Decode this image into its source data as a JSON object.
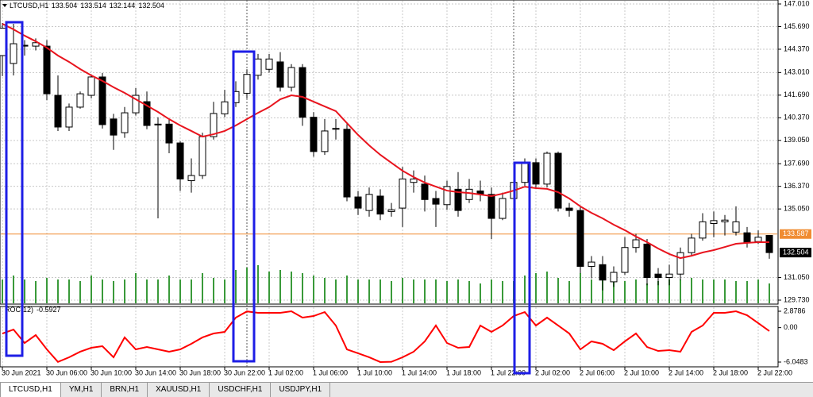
{
  "chart_data": [
    {
      "type": "candlestick",
      "title": "LTCUSD,H1",
      "categories": [
        "30 Jun 2021",
        null,
        null,
        null,
        "30 Jun 06:00",
        null,
        null,
        null,
        "30 Jun 10:00",
        null,
        null,
        null,
        "30 Jun 14:00",
        null,
        null,
        null,
        "30 Jun 18:00",
        null,
        null,
        null,
        "30 Jun 22:00",
        null,
        null,
        null,
        "1 Jul 02:00",
        null,
        null,
        null,
        "1 Jul 06:00",
        null,
        null,
        null,
        "1 Jul 10:00",
        null,
        null,
        null,
        "1 Jul 14:00",
        null,
        null,
        null,
        "1 Jul 18:00",
        null,
        null,
        null,
        "1 Jul 22:00",
        null,
        null,
        null,
        "2 Jul 02:00",
        null,
        null,
        null,
        "2 Jul 06:00",
        null,
        null,
        null,
        "2 Jul 10:00",
        null,
        null,
        null,
        "2 Jul 14:00",
        null,
        null,
        null,
        "2 Jul 18:00",
        null,
        null,
        null,
        "2 Jul 22:00",
        null
      ],
      "open": [
        144.0,
        143.54,
        144.6,
        144.55,
        144.55,
        141.68,
        139.83,
        140.99,
        141.68,
        142.75,
        140.3,
        139.5,
        140.66,
        141.31,
        140.0,
        140.0,
        138.9,
        136.7,
        137.0,
        139.27,
        140.6,
        141.25,
        141.8,
        142.85,
        143.2,
        143.63,
        142.15,
        143.3,
        140.4,
        138.4,
        139.7,
        139.7,
        135.75,
        134.96,
        135.8,
        134.9,
        135.1,
        136.6,
        136.5,
        135.66,
        135.3,
        136.2,
        135.6,
        136.1,
        135.9,
        134.5,
        135.66,
        136.6,
        137.75,
        136.5,
        138.3,
        135.1,
        134.96,
        131.7,
        131.8,
        130.8,
        131.35,
        132.8,
        133.0,
        131.25,
        131.05,
        131.25,
        132.5,
        133.35,
        134.2,
        134.3,
        133.7,
        133.66,
        133.15,
        133.504
      ],
      "high": [
        145.9,
        145.85,
        144.9,
        145.0,
        144.9,
        142.84,
        141.2,
        141.9,
        142.9,
        142.98,
        140.6,
        141.0,
        142.1,
        141.9,
        140.4,
        140.3,
        139.0,
        138.0,
        139.5,
        141.3,
        142.0,
        142.5,
        143.2,
        144.1,
        144.1,
        144.2,
        143.5,
        143.5,
        140.7,
        140.3,
        140.3,
        140.0,
        136.1,
        136.3,
        136.2,
        135.4,
        137.5,
        137.3,
        137.0,
        136.1,
        136.7,
        137.2,
        136.8,
        136.7,
        136.3,
        136.0,
        137.0,
        138.0,
        138.0,
        138.4,
        138.4,
        135.4,
        135.2,
        132.3,
        132.3,
        131.7,
        133.4,
        133.6,
        133.3,
        131.6,
        131.8,
        132.8,
        133.6,
        134.8,
        134.9,
        134.7,
        135.2,
        134.0,
        133.8,
        133.514
      ],
      "low": [
        142.8,
        142.84,
        144.0,
        144.3,
        141.4,
        139.6,
        139.6,
        140.9,
        141.5,
        139.74,
        138.5,
        139.2,
        140.5,
        139.7,
        134.5,
        138.3,
        136.1,
        136.0,
        136.8,
        139.1,
        140.4,
        141.0,
        141.5,
        142.6,
        143.0,
        141.9,
        141.9,
        139.9,
        138.1,
        138.2,
        139.1,
        135.5,
        134.7,
        134.6,
        134.4,
        134.6,
        134.0,
        136.0,
        134.9,
        134.0,
        135.0,
        134.6,
        135.4,
        135.5,
        133.3,
        134.4,
        135.4,
        136.4,
        136.3,
        136.3,
        134.9,
        134.6,
        131.3,
        131.0,
        130.3,
        130.5,
        131.2,
        132.5,
        130.6,
        130.6,
        130.6,
        130.9,
        132.3,
        133.2,
        133.4,
        133.5,
        133.5,
        132.8,
        133.0,
        132.144
      ],
      "close": [
        145.6,
        144.69,
        144.55,
        144.75,
        141.77,
        139.83,
        140.99,
        141.77,
        142.75,
        139.97,
        139.36,
        140.66,
        141.68,
        139.92,
        139.95,
        138.9,
        136.8,
        137.0,
        139.27,
        140.62,
        141.3,
        141.9,
        142.9,
        143.8,
        143.8,
        142.15,
        143.3,
        140.4,
        138.4,
        139.6,
        139.75,
        135.75,
        135.1,
        135.9,
        134.75,
        135.0,
        136.8,
        136.8,
        135.6,
        135.33,
        136.36,
        134.96,
        136.2,
        135.9,
        134.5,
        135.66,
        136.6,
        137.7,
        136.5,
        138.3,
        135.1,
        134.96,
        131.7,
        131.95,
        130.9,
        131.35,
        132.8,
        133.25,
        131.05,
        131.05,
        131.25,
        132.5,
        133.35,
        134.3,
        134.37,
        134.4,
        134.3,
        133.1,
        133.4,
        132.504
      ],
      "up_color": "#ffffff",
      "down_color": "#000000",
      "ma": {
        "color": "#e8141e",
        "values": [
          145.85,
          145.53,
          145.16,
          144.83,
          144.46,
          144.0,
          143.63,
          143.21,
          142.84,
          142.52,
          142.15,
          141.82,
          141.45,
          141.08,
          140.71,
          140.29,
          139.92,
          139.6,
          139.27,
          139.41,
          139.6,
          139.92,
          140.29,
          140.66,
          140.99,
          141.45,
          141.68,
          141.59,
          141.31,
          141.03,
          140.76,
          140.06,
          139.37,
          138.76,
          138.21,
          137.74,
          137.28,
          136.91,
          136.59,
          136.35,
          136.12,
          136.03,
          135.98,
          135.89,
          135.8,
          135.94,
          136.12,
          136.35,
          136.26,
          136.22,
          136.03,
          135.66,
          135.2,
          134.82,
          134.5,
          134.13,
          133.81,
          133.44,
          133.11,
          132.74,
          132.42,
          132.18,
          132.32,
          132.51,
          132.65,
          132.83,
          133.02,
          133.07,
          133.11,
          133.11
        ]
      },
      "volume": {
        "color": "#3a9a3a",
        "values": [
          30,
          35,
          30,
          28,
          32,
          30,
          30,
          28,
          35,
          30,
          28,
          30,
          38,
          30,
          30,
          35,
          30,
          30,
          38,
          32,
          30,
          42,
          45,
          48,
          40,
          42,
          40,
          38,
          35,
          32,
          30,
          35,
          30,
          30,
          30,
          28,
          32,
          30,
          30,
          30,
          28,
          30,
          28,
          25,
          30,
          28,
          28,
          35,
          38,
          40,
          32,
          28,
          38,
          30,
          35,
          30,
          28,
          30,
          25,
          28,
          30,
          30,
          32,
          30,
          30,
          30,
          28,
          28,
          30,
          25
        ]
      },
      "ask_line": 133.587,
      "ask_color": "#f08c32",
      "ylim": [
        129.73,
        147.01
      ],
      "yticks": [
        {
          "value": 147.01,
          "label": "147.010"
        },
        {
          "value": 145.69,
          "label": "145.690"
        },
        {
          "value": 144.37,
          "label": "144.370"
        },
        {
          "value": 143.01,
          "label": "143.010"
        },
        {
          "value": 141.69,
          "label": "141.690"
        },
        {
          "value": 140.37,
          "label": "140.370"
        },
        {
          "value": 139.05,
          "label": "139.050"
        },
        {
          "value": 137.69,
          "label": "137.690"
        },
        {
          "value": 136.37,
          "label": "136.370"
        },
        {
          "value": 135.05,
          "label": "135.050"
        },
        {
          "value": 131.05,
          "label": "131.050"
        },
        {
          "value": 129.73,
          "label": "129.730"
        }
      ],
      "grid": true
    },
    {
      "type": "line",
      "title": "ROC(12)",
      "color": "#ff0000",
      "values": [
        -1.03,
        -0.33,
        -2.7,
        -1.31,
        -3.82,
        -6.02,
        -5.21,
        -4.23,
        -3.54,
        -3.26,
        -5.21,
        -1.72,
        -3.82,
        -3.4,
        -3.82,
        -4.23,
        -3.82,
        -2.84,
        -1.72,
        -1.03,
        -0.75,
        1.76,
        2.85,
        2.6,
        2.6,
        2.6,
        2.87,
        1.76,
        2.04,
        2.74,
        0.37,
        -3.82,
        -4.51,
        -5.21,
        -6.04,
        -6.0,
        -5.21,
        -4.23,
        -2.42,
        0.37,
        -2.7,
        -3.54,
        -3.4,
        0.37,
        -0.75,
        0.37,
        2.04,
        2.74,
        0.37,
        1.76,
        0.37,
        -1.03,
        -3.82,
        -2.42,
        -2.84,
        -3.96,
        -2.42,
        -1.03,
        -3.4,
        -4.1,
        -3.96,
        -4.23,
        -0.75,
        0.37,
        2.6,
        2.6,
        2.87,
        2.18,
        0.79,
        -0.5927
      ],
      "ylim": [
        -6.0483,
        2.8786
      ],
      "yticks": [
        2.8786,
        {
          "value": 0,
          "label": "0.00"
        },
        -6.0483
      ]
    }
  ],
  "tabs": [
    "LTCUSD,H1",
    "YM,H1",
    "BRN,H1",
    "XAUUSD,H1",
    "USDCHF,H1",
    "USDJPY,H1"
  ]
}
